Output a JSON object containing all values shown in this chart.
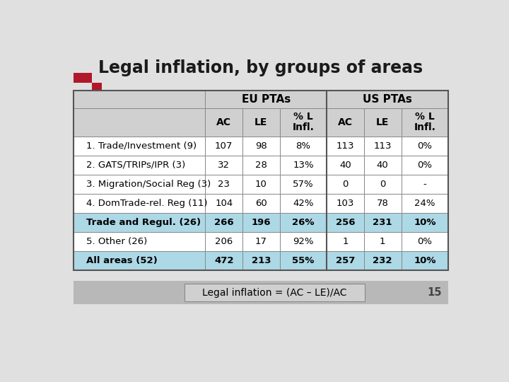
{
  "title": "Legal inflation, by groups of areas",
  "footer": "Legal inflation = (AC – LE)/AC",
  "page_num": "15",
  "col_headers_row2": [
    "",
    "AC",
    "LE",
    "% L\nInfl.",
    "AC",
    "LE",
    "% L\nInfl."
  ],
  "rows": [
    [
      "1. Trade/Investment (9)",
      "107",
      "98",
      "8%",
      "113",
      "113",
      "0%"
    ],
    [
      "2. GATS/TRIPs/IPR (3)",
      "32",
      "28",
      "13%",
      "40",
      "40",
      "0%"
    ],
    [
      "3. Migration/Social Reg (3)",
      "23",
      "10",
      "57%",
      "0",
      "0",
      "-"
    ],
    [
      "4. DomTrade-rel. Reg (11)",
      "104",
      "60",
      "42%",
      "103",
      "78",
      "24%"
    ],
    [
      "Trade and Regul. (26)",
      "266",
      "196",
      "26%",
      "256",
      "231",
      "10%"
    ],
    [
      "5. Other (26)",
      "206",
      "17",
      "92%",
      "1",
      "1",
      "0%"
    ],
    [
      "All areas (52)",
      "472",
      "213",
      "55%",
      "257",
      "232",
      "10%"
    ]
  ],
  "bold_rows": [
    4,
    6
  ],
  "highlight_rows": [
    4,
    6
  ],
  "highlight_color": "#add8e6",
  "header_bg": "#d0d0d0",
  "bg_color": "#e0e0e0",
  "table_bg": "#ffffff",
  "footer_bg": "#b8b8b8",
  "footer_inner_bg": "#d0d0d0",
  "logo_red": "#b0192a",
  "logo_white": "#ffffff"
}
